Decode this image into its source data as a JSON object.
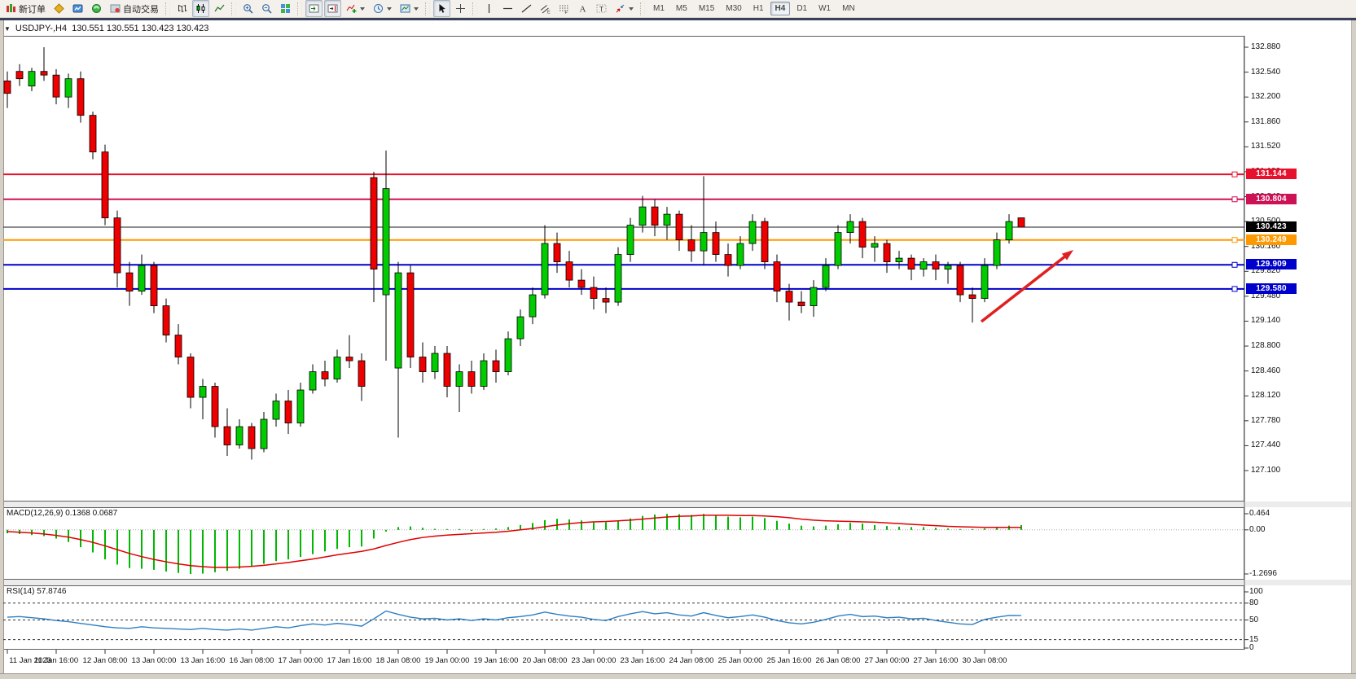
{
  "window": {
    "badge_count": "1"
  },
  "toolbar": {
    "timeframes": [
      "M1",
      "M5",
      "M15",
      "M30",
      "H1",
      "H4",
      "D1",
      "W1",
      "MN"
    ],
    "active_timeframe": "H4",
    "items": [
      {
        "name": "new-order",
        "icon": "new-order-icon",
        "label": "新订单"
      },
      {
        "name": "metaeditor",
        "icon": "metaeditor-icon"
      },
      {
        "name": "terminal",
        "icon": "terminal-icon"
      },
      {
        "name": "signals",
        "icon": "signals-icon"
      },
      {
        "name": "auto-trading",
        "icon": "autotrade-icon",
        "label": "自动交易"
      },
      {
        "sep": true
      },
      {
        "name": "bar-chart",
        "icon": "bar-chart-icon"
      },
      {
        "name": "candle-chart",
        "icon": "candle-chart-icon",
        "active": true
      },
      {
        "name": "line-chart",
        "icon": "line-chart-icon"
      },
      {
        "sep": true
      },
      {
        "name": "zoom-in",
        "icon": "zoom-in-icon"
      },
      {
        "name": "zoom-out",
        "icon": "zoom-out-icon"
      },
      {
        "name": "tile-windows",
        "icon": "tile-windows-icon"
      },
      {
        "sep": true
      },
      {
        "name": "auto-scroll",
        "icon": "auto-scroll-icon",
        "active": true
      },
      {
        "name": "chart-shift",
        "icon": "chart-shift-icon",
        "active": true
      },
      {
        "name": "indicators",
        "icon": "indicators-icon",
        "caret": true
      },
      {
        "name": "periods",
        "icon": "periods-icon",
        "caret": true
      },
      {
        "name": "templates",
        "icon": "templates-icon",
        "caret": true
      },
      {
        "sep": true
      },
      {
        "name": "cursor",
        "icon": "cursor-icon",
        "active": true
      },
      {
        "name": "crosshair",
        "icon": "crosshair-icon"
      },
      {
        "sep": true
      },
      {
        "name": "vertical-line",
        "icon": "vline-icon"
      },
      {
        "name": "horizontal-line",
        "icon": "hline-icon"
      },
      {
        "name": "trendline",
        "icon": "trendline-icon"
      },
      {
        "name": "equidistant-channel",
        "icon": "channel-icon"
      },
      {
        "name": "fibonacci",
        "icon": "fibo-icon"
      },
      {
        "name": "text",
        "icon": "text-icon"
      },
      {
        "name": "text-label",
        "icon": "label-icon"
      },
      {
        "name": "arrows",
        "icon": "arrows-icon",
        "caret": true
      },
      {
        "sep": true
      }
    ]
  },
  "chart_header": {
    "symbol_title": "USDJPY-,H4",
    "ohlc": "130.551 130.551 130.423 130.423"
  },
  "chart_data": {
    "type": "candlestick",
    "symbol": "USDJPY-",
    "timeframe": "H4",
    "ylim": [
      127.1,
      132.88
    ],
    "y_ticks": [
      "132.880",
      "132.540",
      "132.200",
      "131.860",
      "131.520",
      "131.180",
      "130.840",
      "130.500",
      "130.160",
      "129.820",
      "129.480",
      "129.140",
      "128.800",
      "128.460",
      "128.120",
      "127.780",
      "127.440",
      "127.100"
    ],
    "x_labels": [
      "11 Jan 2023",
      "11 Jan 16:00",
      "12 Jan 08:00",
      "13 Jan 00:00",
      "13 Jan 16:00",
      "16 Jan 08:00",
      "17 Jan 00:00",
      "17 Jan 16:00",
      "18 Jan 08:00",
      "19 Jan 00:00",
      "19 Jan 16:00",
      "20 Jan 08:00",
      "23 Jan 00:00",
      "23 Jan 16:00",
      "24 Jan 08:00",
      "25 Jan 00:00",
      "25 Jan 16:00",
      "26 Jan 08:00",
      "27 Jan 00:00",
      "27 Jan 16:00",
      "30 Jan 08:00"
    ],
    "bars_per_label": 4,
    "bull_color": "#00cc00",
    "bear_color": "#ee0000",
    "candles": [
      [
        132.42,
        132.55,
        132.05,
        132.25
      ],
      [
        132.55,
        132.65,
        132.35,
        132.45
      ],
      [
        132.35,
        132.6,
        132.28,
        132.55
      ],
      [
        132.55,
        132.88,
        132.42,
        132.5
      ],
      [
        132.5,
        132.58,
        132.1,
        132.2
      ],
      [
        132.2,
        132.52,
        132.05,
        132.45
      ],
      [
        132.45,
        132.55,
        131.85,
        131.95
      ],
      [
        131.95,
        132.0,
        131.35,
        131.45
      ],
      [
        131.45,
        131.55,
        130.45,
        130.55
      ],
      [
        130.55,
        130.65,
        129.6,
        129.8
      ],
      [
        129.8,
        129.95,
        129.35,
        129.55
      ],
      [
        129.55,
        130.05,
        129.5,
        129.9
      ],
      [
        129.9,
        129.95,
        129.25,
        129.35
      ],
      [
        129.35,
        129.45,
        128.85,
        128.95
      ],
      [
        128.95,
        129.1,
        128.55,
        128.65
      ],
      [
        128.65,
        128.7,
        127.95,
        128.1
      ],
      [
        128.1,
        128.35,
        127.8,
        128.25
      ],
      [
        128.25,
        128.3,
        127.55,
        127.7
      ],
      [
        127.7,
        127.95,
        127.3,
        127.45
      ],
      [
        127.45,
        127.8,
        127.4,
        127.7
      ],
      [
        127.7,
        127.75,
        127.25,
        127.4
      ],
      [
        127.4,
        127.9,
        127.35,
        127.8
      ],
      [
        127.8,
        128.15,
        127.7,
        128.05
      ],
      [
        128.05,
        128.2,
        127.6,
        127.75
      ],
      [
        127.75,
        128.3,
        127.7,
        128.2
      ],
      [
        128.2,
        128.55,
        128.15,
        128.45
      ],
      [
        128.45,
        128.6,
        128.25,
        128.35
      ],
      [
        128.35,
        128.75,
        128.3,
        128.65
      ],
      [
        128.65,
        128.95,
        128.5,
        128.6
      ],
      [
        128.6,
        128.7,
        128.05,
        128.25
      ],
      [
        131.1,
        131.18,
        129.4,
        129.85
      ],
      [
        129.5,
        131.47,
        128.6,
        130.95
      ],
      [
        128.5,
        129.95,
        127.55,
        129.8
      ],
      [
        129.8,
        129.9,
        128.5,
        128.65
      ],
      [
        128.65,
        128.85,
        128.3,
        128.45
      ],
      [
        128.45,
        128.8,
        128.35,
        128.7
      ],
      [
        128.7,
        128.8,
        128.1,
        128.25
      ],
      [
        128.25,
        128.55,
        127.9,
        128.45
      ],
      [
        128.45,
        128.6,
        128.15,
        128.25
      ],
      [
        128.25,
        128.7,
        128.2,
        128.6
      ],
      [
        128.6,
        128.75,
        128.3,
        128.45
      ],
      [
        128.45,
        129.0,
        128.4,
        128.9
      ],
      [
        128.9,
        129.3,
        128.8,
        129.2
      ],
      [
        129.2,
        129.6,
        129.1,
        129.5
      ],
      [
        129.5,
        130.45,
        129.45,
        130.2
      ],
      [
        130.2,
        130.35,
        129.8,
        129.95
      ],
      [
        129.95,
        130.1,
        129.6,
        129.7
      ],
      [
        129.7,
        129.85,
        129.5,
        129.6
      ],
      [
        129.6,
        129.75,
        129.3,
        129.45
      ],
      [
        129.45,
        129.6,
        129.25,
        129.4
      ],
      [
        129.4,
        130.15,
        129.35,
        130.05
      ],
      [
        130.05,
        130.55,
        129.95,
        130.45
      ],
      [
        130.45,
        130.85,
        130.35,
        130.7
      ],
      [
        130.7,
        130.8,
        130.3,
        130.45
      ],
      [
        130.45,
        130.7,
        130.25,
        130.6
      ],
      [
        130.6,
        130.65,
        130.1,
        130.25
      ],
      [
        130.25,
        130.45,
        129.95,
        130.1
      ],
      [
        130.1,
        131.12,
        129.9,
        130.35
      ],
      [
        130.35,
        130.5,
        129.95,
        130.05
      ],
      [
        130.05,
        130.2,
        129.75,
        129.9
      ],
      [
        129.9,
        130.3,
        129.85,
        130.2
      ],
      [
        130.2,
        130.6,
        130.1,
        130.5
      ],
      [
        130.5,
        130.55,
        129.85,
        129.95
      ],
      [
        129.95,
        130.05,
        129.4,
        129.55
      ],
      [
        129.55,
        129.65,
        129.15,
        129.4
      ],
      [
        129.4,
        129.55,
        129.25,
        129.35
      ],
      [
        129.35,
        129.7,
        129.2,
        129.6
      ],
      [
        129.6,
        130.0,
        129.55,
        129.9
      ],
      [
        129.9,
        130.45,
        129.85,
        130.35
      ],
      [
        130.35,
        130.6,
        130.2,
        130.5
      ],
      [
        130.5,
        130.55,
        130.0,
        130.15
      ],
      [
        130.15,
        130.3,
        129.95,
        130.2
      ],
      [
        130.2,
        130.25,
        129.8,
        129.95
      ],
      [
        129.95,
        130.1,
        129.85,
        130.0
      ],
      [
        130.0,
        130.05,
        129.7,
        129.85
      ],
      [
        129.85,
        130.0,
        129.75,
        129.95
      ],
      [
        129.95,
        130.05,
        129.7,
        129.85
      ],
      [
        129.85,
        129.95,
        129.65,
        129.9
      ],
      [
        129.9,
        129.95,
        129.4,
        129.5
      ],
      [
        129.5,
        129.6,
        129.12,
        129.45
      ],
      [
        129.45,
        130.0,
        129.4,
        129.9
      ],
      [
        129.9,
        130.35,
        129.85,
        130.25
      ],
      [
        130.25,
        130.6,
        130.2,
        130.5
      ],
      [
        130.551,
        130.551,
        130.423,
        130.423
      ]
    ],
    "hlines": [
      {
        "price": 131.144,
        "color": "#e8112d",
        "width": 2
      },
      {
        "price": 130.804,
        "color": "#cc1155",
        "width": 2
      },
      {
        "price": 130.423,
        "color": "#1a1a1a",
        "width": 1,
        "is_current": true
      },
      {
        "price": 130.249,
        "color": "#ff9900",
        "width": 2
      },
      {
        "price": 129.909,
        "color": "#0000cc",
        "width": 2
      },
      {
        "price": 129.58,
        "color": "#0000cc",
        "width": 2
      }
    ],
    "current_price": "130.423",
    "annotation_arrow": {
      "from": [
        1205,
        395
      ],
      "to": [
        1318,
        307
      ],
      "color": "#e02020"
    },
    "indicators": {
      "macd": {
        "label": "MACD(12,26,9) 0.1368 0.0687",
        "axis": [
          0.464,
          0.0,
          -1.2696
        ],
        "axis_text": [
          "0.464",
          "0.00",
          "-1.2696"
        ],
        "hist_color": "#00b800",
        "signal_color": "#e00000",
        "histogram": [
          -0.1,
          -0.12,
          -0.15,
          -0.18,
          -0.25,
          -0.35,
          -0.5,
          -0.65,
          -0.85,
          -1.0,
          -1.1,
          -1.12,
          -1.15,
          -1.2,
          -1.24,
          -1.27,
          -1.26,
          -1.22,
          -1.18,
          -1.12,
          -1.05,
          -0.98,
          -0.9,
          -0.85,
          -0.78,
          -0.7,
          -0.62,
          -0.55,
          -0.5,
          -0.48,
          -0.25,
          -0.05,
          0.08,
          0.1,
          0.06,
          0.03,
          0.0,
          -0.02,
          -0.03,
          0.0,
          0.04,
          0.08,
          0.14,
          0.2,
          0.28,
          0.32,
          0.3,
          0.27,
          0.24,
          0.22,
          0.26,
          0.33,
          0.4,
          0.44,
          0.46,
          0.45,
          0.43,
          0.46,
          0.42,
          0.38,
          0.36,
          0.38,
          0.34,
          0.26,
          0.18,
          0.12,
          0.1,
          0.12,
          0.16,
          0.2,
          0.18,
          0.14,
          0.11,
          0.09,
          0.08,
          0.08,
          0.06,
          0.04,
          0.02,
          0.01,
          0.04,
          0.08,
          0.12,
          0.137
        ],
        "signal": [
          -0.05,
          -0.07,
          -0.09,
          -0.12,
          -0.16,
          -0.21,
          -0.28,
          -0.36,
          -0.46,
          -0.57,
          -0.68,
          -0.77,
          -0.85,
          -0.92,
          -0.98,
          -1.03,
          -1.06,
          -1.08,
          -1.08,
          -1.07,
          -1.05,
          -1.02,
          -0.98,
          -0.94,
          -0.89,
          -0.84,
          -0.78,
          -0.72,
          -0.67,
          -0.62,
          -0.55,
          -0.45,
          -0.36,
          -0.28,
          -0.22,
          -0.18,
          -0.15,
          -0.13,
          -0.11,
          -0.09,
          -0.07,
          -0.04,
          0.0,
          0.04,
          0.09,
          0.14,
          0.18,
          0.21,
          0.23,
          0.24,
          0.26,
          0.28,
          0.31,
          0.34,
          0.37,
          0.39,
          0.4,
          0.42,
          0.42,
          0.42,
          0.41,
          0.41,
          0.4,
          0.38,
          0.35,
          0.31,
          0.28,
          0.26,
          0.25,
          0.24,
          0.23,
          0.22,
          0.2,
          0.18,
          0.16,
          0.14,
          0.12,
          0.1,
          0.09,
          0.08,
          0.07,
          0.07,
          0.07,
          0.069
        ]
      },
      "rsi": {
        "label": "RSI(14) 57.8746",
        "axis": [
          100,
          80,
          50,
          15,
          0
        ],
        "axis_text": [
          "100",
          "80",
          "50",
          "15",
          "0"
        ],
        "levels": [
          80,
          50,
          15
        ],
        "color": "#2e7fc2",
        "values": [
          55,
          56,
          54,
          52,
          49,
          47,
          44,
          41,
          38,
          36,
          35,
          38,
          36,
          35,
          34,
          33,
          35,
          33,
          32,
          34,
          32,
          35,
          38,
          36,
          40,
          43,
          41,
          44,
          42,
          39,
          52,
          66,
          60,
          55,
          52,
          53,
          50,
          52,
          49,
          52,
          50,
          54,
          56,
          59,
          64,
          60,
          57,
          55,
          51,
          49,
          56,
          61,
          65,
          61,
          63,
          59,
          57,
          63,
          58,
          54,
          56,
          59,
          55,
          49,
          45,
          43,
          46,
          51,
          57,
          60,
          56,
          57,
          54,
          55,
          52,
          53,
          49,
          46,
          43,
          42,
          51,
          55,
          58,
          57.9
        ]
      }
    }
  }
}
